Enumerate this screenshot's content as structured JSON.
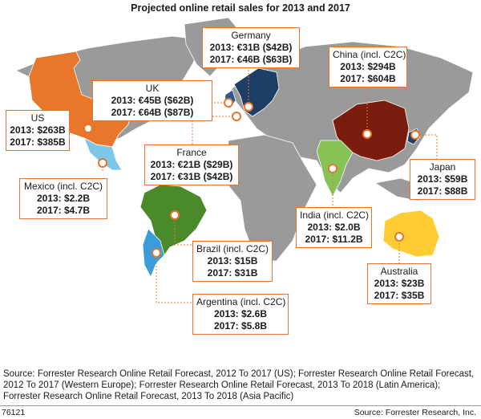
{
  "title": "Projected online retail sales for 2013 and 2017",
  "colors": {
    "land": "#9a9a9a",
    "ocean": "#ffffff",
    "germany_europe": "#1f3e66",
    "uk": "#2d5a8a",
    "us": "#e8762b",
    "mexico": "#7fc7e8",
    "brazil": "#4b8a2b",
    "argentina": "#3b9cdb",
    "china": "#7a1c0e",
    "india": "#86c256",
    "japan": "#1f3e66",
    "australia": "#ffcc33",
    "accent": "#e4762c"
  },
  "markers": [
    {
      "name": "US",
      "2013": "2013: $263B",
      "2017": "2017: $385B"
    },
    {
      "name": "Mexico (incl. C2C)",
      "2013": "2013: $2.2B",
      "2017": "2017: $4.7B"
    },
    {
      "name": "UK",
      "2013": "2013: €45B ($62B)",
      "2017": "2017: €64B ($87B)"
    },
    {
      "name": "Germany",
      "2013": "2013: €31B ($42B)",
      "2017": "2017: €46B ($63B)"
    },
    {
      "name": "France",
      "2013": "2013: €21B ($29B)",
      "2017": "2017: €31B ($42B)"
    },
    {
      "name": "China (incl. C2C)",
      "2013": "2013: $294B",
      "2017": "2017: $604B"
    },
    {
      "name": "Japan",
      "2013": "2013: $59B",
      "2017": "2017: $88B"
    },
    {
      "name": "India (incl. C2C)",
      "2013": "2013: $2.0B",
      "2017": "2017: $11.2B"
    },
    {
      "name": "Australia",
      "2013": "2013: $23B",
      "2017": "2017: $35B"
    },
    {
      "name": "Brazil (incl. C2C)",
      "2013": "2013: $15B",
      "2017": "2017: $31B"
    },
    {
      "name": "Argentina (incl. C2C)",
      "2013": "2013: $2.6B",
      "2017": "2017: $5.8B"
    }
  ],
  "source": "Source: Forrester Research Online Retail Forecast, 2012 To 2017 (US); Forrester Research Online Retail Forecast, 2012 To 2017 (Western Europe); Forrester Research Online Retail Forecast, 2013 To 2018 (Latin America); Forrester Research Online Retail Forecast, 2013 To 2018 (Asia Pacific)",
  "figure_id": "76121",
  "credit": "Source: Forrester Research, Inc."
}
